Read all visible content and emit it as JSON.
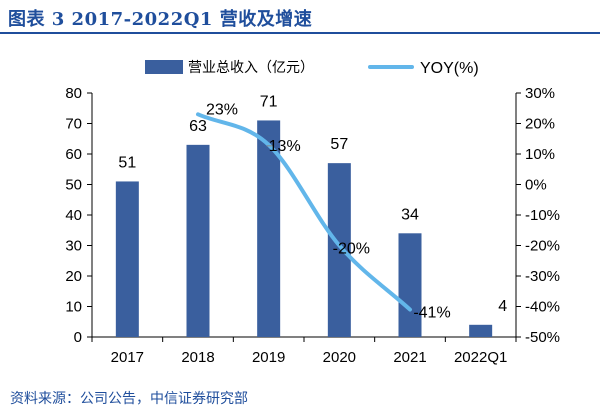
{
  "title": "图表 3 2017-2022Q1 营收及增速",
  "source": "资料来源：公司公告，中信证券研究部",
  "colors": {
    "bar": "#3a5f9e",
    "line": "#62b6ea",
    "title": "#1f4e9c",
    "axis": "#000000"
  },
  "chart_data": {
    "type": "bar",
    "categories": [
      "2017",
      "2018",
      "2019",
      "2020",
      "2021",
      "2022Q1"
    ],
    "series": [
      {
        "name": "营业总收入（亿元）",
        "type": "bar",
        "axis": "left",
        "values": [
          51,
          63,
          71,
          57,
          34,
          4
        ],
        "labels": [
          "51",
          "63",
          "71",
          "57",
          "34",
          "4"
        ]
      },
      {
        "name": "YOY(%)",
        "type": "line",
        "axis": "right",
        "smooth": true,
        "values": [
          null,
          23,
          13,
          -20,
          -41,
          null
        ],
        "labels": [
          "",
          "23%",
          "13%",
          "-20%",
          "-41%",
          ""
        ]
      }
    ],
    "left_axis": {
      "ylim": [
        0,
        80
      ],
      "ticks": [
        "0",
        "10",
        "20",
        "30",
        "40",
        "50",
        "60",
        "70",
        "80"
      ]
    },
    "right_axis": {
      "ylim": [
        -50,
        30
      ],
      "ticks": [
        "-50%",
        "-40%",
        "-30%",
        "-20%",
        "-10%",
        "0%",
        "10%",
        "20%",
        "30%"
      ]
    },
    "legend_position": "top-center",
    "grid": false
  }
}
